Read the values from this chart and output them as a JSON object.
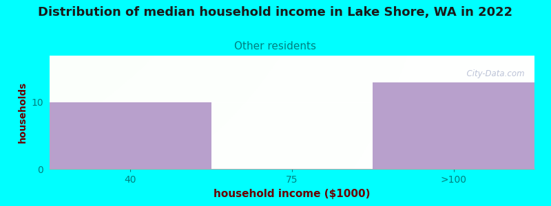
{
  "title": "Distribution of median household income in Lake Shore, WA in 2022",
  "subtitle": "Other residents",
  "xlabel": "household income ($1000)",
  "ylabel": "households",
  "background_color": "#00FFFF",
  "plot_bg_color_topleft": "#e8ffe8",
  "plot_bg_color_topright": "#f8f8ff",
  "plot_bg_color_bottomleft": "#d8f8d8",
  "bar_color": "#b8a0cc",
  "categories": [
    "40",
    "75",
    ">100"
  ],
  "values": [
    10,
    0,
    13
  ],
  "ylim": [
    0,
    17
  ],
  "yticks": [
    0,
    10
  ],
  "title_fontsize": 13,
  "title_color": "#1a1a1a",
  "subtitle_fontsize": 11,
  "subtitle_color": "#008080",
  "axis_label_color": "#6b0000",
  "tick_label_color": "#008080",
  "ylabel_fontsize": 10,
  "xlabel_fontsize": 11,
  "watermark": "  City-Data.com",
  "watermark_color": "#b0b8d0",
  "n_bars": 3
}
